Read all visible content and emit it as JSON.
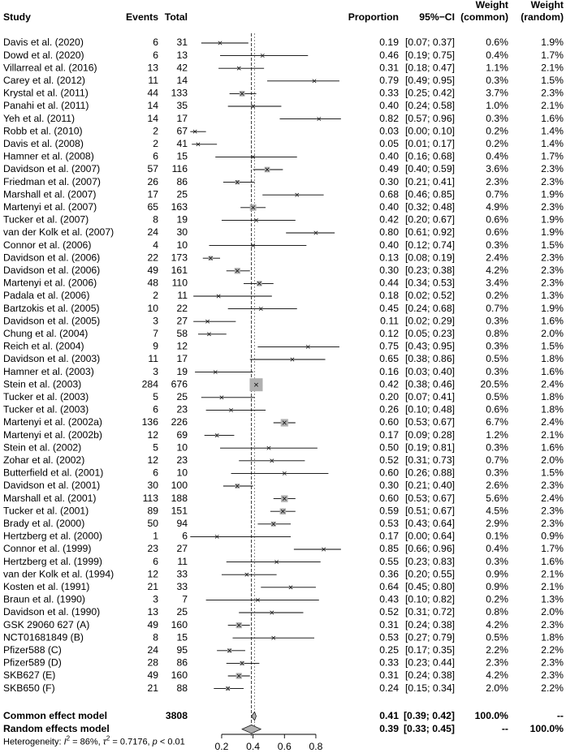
{
  "chart_data": {
    "type": "forest",
    "headers": {
      "study": "Study",
      "events": "Events",
      "total": "Total",
      "proportion": "Proportion",
      "ci": "95%−CI",
      "weight_common_top": "Weight",
      "weight_common_bottom": "(common)",
      "weight_random_top": "Weight",
      "weight_random_bottom": "(random)"
    },
    "studies": [
      {
        "study": "Davis et al. (2020)",
        "events": "6",
        "total": "31",
        "prop": 0.19,
        "ci_low": 0.07,
        "ci_high": 0.37,
        "prop_text": "0.19",
        "ci_text": "[0.07; 0.37]",
        "w_common": "0.6%",
        "w_random": "1.9%",
        "w_common_value": 0.6
      },
      {
        "study": "Dowd et al. (2020)",
        "events": "6",
        "total": "13",
        "prop": 0.46,
        "ci_low": 0.19,
        "ci_high": 0.75,
        "prop_text": "0.46",
        "ci_text": "[0.19; 0.75]",
        "w_common": "0.4%",
        "w_random": "1.7%",
        "w_common_value": 0.4
      },
      {
        "study": "Villarreal et al. (2016)",
        "events": "13",
        "total": "42",
        "prop": 0.31,
        "ci_low": 0.18,
        "ci_high": 0.47,
        "prop_text": "0.31",
        "ci_text": "[0.18; 0.47]",
        "w_common": "1.1%",
        "w_random": "2.1%",
        "w_common_value": 1.1
      },
      {
        "study": "Carey et al. (2012)",
        "events": "11",
        "total": "14",
        "prop": 0.79,
        "ci_low": 0.49,
        "ci_high": 0.95,
        "prop_text": "0.79",
        "ci_text": "[0.49; 0.95]",
        "w_common": "0.3%",
        "w_random": "1.5%",
        "w_common_value": 0.3
      },
      {
        "study": "Krystal et al. (2011)",
        "events": "44",
        "total": "133",
        "prop": 0.33,
        "ci_low": 0.25,
        "ci_high": 0.42,
        "prop_text": "0.33",
        "ci_text": "[0.25; 0.42]",
        "w_common": "3.7%",
        "w_random": "2.3%",
        "w_common_value": 3.7
      },
      {
        "study": "Panahi et al. (2011)",
        "events": "14",
        "total": "35",
        "prop": 0.4,
        "ci_low": 0.24,
        "ci_high": 0.58,
        "prop_text": "0.40",
        "ci_text": "[0.24; 0.58]",
        "w_common": "1.0%",
        "w_random": "2.1%",
        "w_common_value": 1.0
      },
      {
        "study": "Yeh et al. (2011)",
        "events": "14",
        "total": "17",
        "prop": 0.82,
        "ci_low": 0.57,
        "ci_high": 0.96,
        "prop_text": "0.82",
        "ci_text": "[0.57; 0.96]",
        "w_common": "0.3%",
        "w_random": "1.6%",
        "w_common_value": 0.3
      },
      {
        "study": "Robb et al. (2010)",
        "events": "2",
        "total": "67",
        "prop": 0.03,
        "ci_low": 0.0,
        "ci_high": 0.1,
        "prop_text": "0.03",
        "ci_text": "[0.00; 0.10]",
        "w_common": "0.2%",
        "w_random": "1.4%",
        "w_common_value": 0.2
      },
      {
        "study": "Davis et al. (2008)",
        "events": "2",
        "total": "41",
        "prop": 0.05,
        "ci_low": 0.01,
        "ci_high": 0.17,
        "prop_text": "0.05",
        "ci_text": "[0.01; 0.17]",
        "w_common": "0.2%",
        "w_random": "1.4%",
        "w_common_value": 0.2
      },
      {
        "study": "Hamner et al. (2008)",
        "events": "6",
        "total": "15",
        "prop": 0.4,
        "ci_low": 0.16,
        "ci_high": 0.68,
        "prop_text": "0.40",
        "ci_text": "[0.16; 0.68]",
        "w_common": "0.4%",
        "w_random": "1.7%",
        "w_common_value": 0.4
      },
      {
        "study": "Davidson et al. (2007)",
        "events": "57",
        "total": "116",
        "prop": 0.49,
        "ci_low": 0.4,
        "ci_high": 0.59,
        "prop_text": "0.49",
        "ci_text": "[0.40; 0.59]",
        "w_common": "3.6%",
        "w_random": "2.3%",
        "w_common_value": 3.6
      },
      {
        "study": "Friedman et al. (2007)",
        "events": "26",
        "total": "86",
        "prop": 0.3,
        "ci_low": 0.21,
        "ci_high": 0.41,
        "prop_text": "0.30",
        "ci_text": "[0.21; 0.41]",
        "w_common": "2.3%",
        "w_random": "2.3%",
        "w_common_value": 2.3
      },
      {
        "study": "Marshall et al. (2007)",
        "events": "17",
        "total": "25",
        "prop": 0.68,
        "ci_low": 0.46,
        "ci_high": 0.85,
        "prop_text": "0.68",
        "ci_text": "[0.46; 0.85]",
        "w_common": "0.7%",
        "w_random": "1.9%",
        "w_common_value": 0.7
      },
      {
        "study": "Martenyi et al. (2007)",
        "events": "65",
        "total": "163",
        "prop": 0.4,
        "ci_low": 0.32,
        "ci_high": 0.48,
        "prop_text": "0.40",
        "ci_text": "[0.32; 0.48]",
        "w_common": "4.9%",
        "w_random": "2.3%",
        "w_common_value": 4.9
      },
      {
        "study": "Tucker et al. (2007)",
        "events": "8",
        "total": "19",
        "prop": 0.42,
        "ci_low": 0.2,
        "ci_high": 0.67,
        "prop_text": "0.42",
        "ci_text": "[0.20; 0.67]",
        "w_common": "0.6%",
        "w_random": "1.9%",
        "w_common_value": 0.6
      },
      {
        "study": "van der Kolk et al. (2007)",
        "events": "24",
        "total": "30",
        "prop": 0.8,
        "ci_low": 0.61,
        "ci_high": 0.92,
        "prop_text": "0.80",
        "ci_text": "[0.61; 0.92]",
        "w_common": "0.6%",
        "w_random": "1.9%",
        "w_common_value": 0.6
      },
      {
        "study": "Connor et al. (2006)",
        "events": "4",
        "total": "10",
        "prop": 0.4,
        "ci_low": 0.12,
        "ci_high": 0.74,
        "prop_text": "0.40",
        "ci_text": "[0.12; 0.74]",
        "w_common": "0.3%",
        "w_random": "1.5%",
        "w_common_value": 0.3
      },
      {
        "study": "Davidson et al. (2006)",
        "events": "22",
        "total": "173",
        "prop": 0.13,
        "ci_low": 0.08,
        "ci_high": 0.19,
        "prop_text": "0.13",
        "ci_text": "[0.08; 0.19]",
        "w_common": "2.4%",
        "w_random": "2.3%",
        "w_common_value": 2.4
      },
      {
        "study": "Davidson et al. (2006)",
        "events": "49",
        "total": "161",
        "prop": 0.3,
        "ci_low": 0.23,
        "ci_high": 0.38,
        "prop_text": "0.30",
        "ci_text": "[0.23; 0.38]",
        "w_common": "4.2%",
        "w_random": "2.3%",
        "w_common_value": 4.2
      },
      {
        "study": "Martenyi et al. (2006)",
        "events": "48",
        "total": "110",
        "prop": 0.44,
        "ci_low": 0.34,
        "ci_high": 0.53,
        "prop_text": "0.44",
        "ci_text": "[0.34; 0.53]",
        "w_common": "3.4%",
        "w_random": "2.3%",
        "w_common_value": 3.4
      },
      {
        "study": "Padala et al. (2006)",
        "events": "2",
        "total": "11",
        "prop": 0.18,
        "ci_low": 0.02,
        "ci_high": 0.52,
        "prop_text": "0.18",
        "ci_text": "[0.02; 0.52]",
        "w_common": "0.2%",
        "w_random": "1.3%",
        "w_common_value": 0.2
      },
      {
        "study": "Bartzokis et al. (2005)",
        "events": "10",
        "total": "22",
        "prop": 0.45,
        "ci_low": 0.24,
        "ci_high": 0.68,
        "prop_text": "0.45",
        "ci_text": "[0.24; 0.68]",
        "w_common": "0.7%",
        "w_random": "1.9%",
        "w_common_value": 0.7
      },
      {
        "study": "Davidson et al. (2005)",
        "events": "3",
        "total": "27",
        "prop": 0.11,
        "ci_low": 0.02,
        "ci_high": 0.29,
        "prop_text": "0.11",
        "ci_text": "[0.02; 0.29]",
        "w_common": "0.3%",
        "w_random": "1.6%",
        "w_common_value": 0.3
      },
      {
        "study": "Chung et al. (2004)",
        "events": "7",
        "total": "58",
        "prop": 0.12,
        "ci_low": 0.05,
        "ci_high": 0.23,
        "prop_text": "0.12",
        "ci_text": "[0.05; 0.23]",
        "w_common": "0.8%",
        "w_random": "2.0%",
        "w_common_value": 0.8
      },
      {
        "study": "Reich et al. (2004)",
        "events": "9",
        "total": "12",
        "prop": 0.75,
        "ci_low": 0.43,
        "ci_high": 0.95,
        "prop_text": "0.75",
        "ci_text": "[0.43; 0.95]",
        "w_common": "0.3%",
        "w_random": "1.5%",
        "w_common_value": 0.3
      },
      {
        "study": "Davidson et al. (2003)",
        "events": "11",
        "total": "17",
        "prop": 0.65,
        "ci_low": 0.38,
        "ci_high": 0.86,
        "prop_text": "0.65",
        "ci_text": "[0.38; 0.86]",
        "w_common": "0.5%",
        "w_random": "1.8%",
        "w_common_value": 0.5
      },
      {
        "study": "Hamner et al. (2003)",
        "events": "3",
        "total": "19",
        "prop": 0.16,
        "ci_low": 0.03,
        "ci_high": 0.4,
        "prop_text": "0.16",
        "ci_text": "[0.03; 0.40]",
        "w_common": "0.3%",
        "w_random": "1.6%",
        "w_common_value": 0.3
      },
      {
        "study": "Stein et al. (2003)",
        "events": "284",
        "total": "676",
        "prop": 0.42,
        "ci_low": 0.38,
        "ci_high": 0.46,
        "prop_text": "0.42",
        "ci_text": "[0.38; 0.46]",
        "w_common": "20.5%",
        "w_random": "2.4%",
        "w_common_value": 20.5
      },
      {
        "study": "Tucker et al. (2003)",
        "events": "5",
        "total": "25",
        "prop": 0.2,
        "ci_low": 0.07,
        "ci_high": 0.41,
        "prop_text": "0.20",
        "ci_text": "[0.07; 0.41]",
        "w_common": "0.5%",
        "w_random": "1.8%",
        "w_common_value": 0.5
      },
      {
        "study": "Tucker et al. (2003)",
        "events": "6",
        "total": "23",
        "prop": 0.26,
        "ci_low": 0.1,
        "ci_high": 0.48,
        "prop_text": "0.26",
        "ci_text": "[0.10; 0.48]",
        "w_common": "0.6%",
        "w_random": "1.8%",
        "w_common_value": 0.6
      },
      {
        "study": "Martenyi et al. (2002a)",
        "events": "136",
        "total": "226",
        "prop": 0.6,
        "ci_low": 0.53,
        "ci_high": 0.67,
        "prop_text": "0.60",
        "ci_text": "[0.53; 0.67]",
        "w_common": "6.7%",
        "w_random": "2.4%",
        "w_common_value": 6.7
      },
      {
        "study": "Martenyi et al. (2002b)",
        "events": "12",
        "total": "69",
        "prop": 0.17,
        "ci_low": 0.09,
        "ci_high": 0.28,
        "prop_text": "0.17",
        "ci_text": "[0.09; 0.28]",
        "w_common": "1.2%",
        "w_random": "2.1%",
        "w_common_value": 1.2
      },
      {
        "study": "Stein et al. (2002)",
        "events": "5",
        "total": "10",
        "prop": 0.5,
        "ci_low": 0.19,
        "ci_high": 0.81,
        "prop_text": "0.50",
        "ci_text": "[0.19; 0.81]",
        "w_common": "0.3%",
        "w_random": "1.6%",
        "w_common_value": 0.3
      },
      {
        "study": "Zohar et al. (2002)",
        "events": "12",
        "total": "23",
        "prop": 0.52,
        "ci_low": 0.31,
        "ci_high": 0.73,
        "prop_text": "0.52",
        "ci_text": "[0.31; 0.73]",
        "w_common": "0.7%",
        "w_random": "2.0%",
        "w_common_value": 0.7
      },
      {
        "study": "Butterfield et al. (2001)",
        "events": "6",
        "total": "10",
        "prop": 0.6,
        "ci_low": 0.26,
        "ci_high": 0.88,
        "prop_text": "0.60",
        "ci_text": "[0.26; 0.88]",
        "w_common": "0.3%",
        "w_random": "1.5%",
        "w_common_value": 0.3
      },
      {
        "study": "Davidson et al. (2001)",
        "events": "30",
        "total": "100",
        "prop": 0.3,
        "ci_low": 0.21,
        "ci_high": 0.4,
        "prop_text": "0.30",
        "ci_text": "[0.21; 0.40]",
        "w_common": "2.6%",
        "w_random": "2.3%",
        "w_common_value": 2.6
      },
      {
        "study": "Marshall et al. (2001)",
        "events": "113",
        "total": "188",
        "prop": 0.6,
        "ci_low": 0.53,
        "ci_high": 0.67,
        "prop_text": "0.60",
        "ci_text": "[0.53; 0.67]",
        "w_common": "5.6%",
        "w_random": "2.4%",
        "w_common_value": 5.6
      },
      {
        "study": "Tucker et al. (2001)",
        "events": "89",
        "total": "151",
        "prop": 0.59,
        "ci_low": 0.51,
        "ci_high": 0.67,
        "prop_text": "0.59",
        "ci_text": "[0.51; 0.67]",
        "w_common": "4.5%",
        "w_random": "2.3%",
        "w_common_value": 4.5
      },
      {
        "study": "Brady et al. (2000)",
        "events": "50",
        "total": "94",
        "prop": 0.53,
        "ci_low": 0.43,
        "ci_high": 0.64,
        "prop_text": "0.53",
        "ci_text": "[0.43; 0.64]",
        "w_common": "2.9%",
        "w_random": "2.3%",
        "w_common_value": 2.9
      },
      {
        "study": "Hertzberg et al. (2000)",
        "events": "1",
        "total": "6",
        "prop": 0.17,
        "ci_low": 0.0,
        "ci_high": 0.64,
        "prop_text": "0.17",
        "ci_text": "[0.00; 0.64]",
        "w_common": "0.1%",
        "w_random": "0.9%",
        "w_common_value": 0.1
      },
      {
        "study": "Connor et al. (1999)",
        "events": "23",
        "total": "27",
        "prop": 0.85,
        "ci_low": 0.66,
        "ci_high": 0.96,
        "prop_text": "0.85",
        "ci_text": "[0.66; 0.96]",
        "w_common": "0.4%",
        "w_random": "1.7%",
        "w_common_value": 0.4
      },
      {
        "study": "Hertzberg et al. (1999)",
        "events": "6",
        "total": "11",
        "prop": 0.55,
        "ci_low": 0.23,
        "ci_high": 0.83,
        "prop_text": "0.55",
        "ci_text": "[0.23; 0.83]",
        "w_common": "0.3%",
        "w_random": "1.6%",
        "w_common_value": 0.3
      },
      {
        "study": "van der Kolk et al. (1994)",
        "events": "12",
        "total": "33",
        "prop": 0.36,
        "ci_low": 0.2,
        "ci_high": 0.55,
        "prop_text": "0.36",
        "ci_text": "[0.20; 0.55]",
        "w_common": "0.9%",
        "w_random": "2.1%",
        "w_common_value": 0.9
      },
      {
        "study": "Kosten et al. (1991)",
        "events": "21",
        "total": "33",
        "prop": 0.64,
        "ci_low": 0.45,
        "ci_high": 0.8,
        "prop_text": "0.64",
        "ci_text": "[0.45; 0.80]",
        "w_common": "0.9%",
        "w_random": "2.1%",
        "w_common_value": 0.9
      },
      {
        "study": "Braun et al. (1990)",
        "events": "3",
        "total": "7",
        "prop": 0.43,
        "ci_low": 0.1,
        "ci_high": 0.82,
        "prop_text": "0.43",
        "ci_text": "[0.10; 0.82]",
        "w_common": "0.2%",
        "w_random": "1.3%",
        "w_common_value": 0.2
      },
      {
        "study": "Davidson et al. (1990)",
        "events": "13",
        "total": "25",
        "prop": 0.52,
        "ci_low": 0.31,
        "ci_high": 0.72,
        "prop_text": "0.52",
        "ci_text": "[0.31; 0.72]",
        "w_common": "0.8%",
        "w_random": "2.0%",
        "w_common_value": 0.8
      },
      {
        "study": "GSK 29060 627 (A)",
        "events": "49",
        "total": "160",
        "prop": 0.31,
        "ci_low": 0.24,
        "ci_high": 0.38,
        "prop_text": "0.31",
        "ci_text": "[0.24; 0.38]",
        "w_common": "4.2%",
        "w_random": "2.3%",
        "w_common_value": 4.2
      },
      {
        "study": "NCT01681849 (B)",
        "events": "8",
        "total": "15",
        "prop": 0.53,
        "ci_low": 0.27,
        "ci_high": 0.79,
        "prop_text": "0.53",
        "ci_text": "[0.27; 0.79]",
        "w_common": "0.5%",
        "w_random": "1.8%",
        "w_common_value": 0.5
      },
      {
        "study": "Pfizer588 (C)",
        "events": "24",
        "total": "95",
        "prop": 0.25,
        "ci_low": 0.17,
        "ci_high": 0.35,
        "prop_text": "0.25",
        "ci_text": "[0.17; 0.35]",
        "w_common": "2.2%",
        "w_random": "2.2%",
        "w_common_value": 2.2
      },
      {
        "study": "Pfizer589 (D)",
        "events": "28",
        "total": "86",
        "prop": 0.33,
        "ci_low": 0.23,
        "ci_high": 0.44,
        "prop_text": "0.33",
        "ci_text": "[0.23; 0.44]",
        "w_common": "2.3%",
        "w_random": "2.3%",
        "w_common_value": 2.3
      },
      {
        "study": "SKB627 (E)",
        "events": "49",
        "total": "160",
        "prop": 0.31,
        "ci_low": 0.24,
        "ci_high": 0.38,
        "prop_text": "0.31",
        "ci_text": "[0.24; 0.38]",
        "w_common": "4.2%",
        "w_random": "2.3%",
        "w_common_value": 4.2
      },
      {
        "study": "SKB650 (F)",
        "events": "21",
        "total": "88",
        "prop": 0.24,
        "ci_low": 0.15,
        "ci_high": 0.34,
        "prop_text": "0.24",
        "ci_text": "[0.15; 0.34]",
        "w_common": "2.0%",
        "w_random": "2.2%",
        "w_common_value": 2.0
      }
    ],
    "summary": [
      {
        "label": "Common effect model",
        "total": "3808",
        "prop": 0.41,
        "ci_low": 0.39,
        "ci_high": 0.42,
        "prop_text": "0.41",
        "ci_text": "[0.39; 0.42]",
        "w_common": "100.0%",
        "w_random": "--"
      },
      {
        "label": "Random effects model",
        "total": "",
        "prop": 0.39,
        "ci_low": 0.33,
        "ci_high": 0.45,
        "prop_text": "0.39",
        "ci_text": "[0.33; 0.45]",
        "w_common": "--",
        "w_random": "100.0%"
      }
    ],
    "heterogeneity": {
      "prefix": "Heterogeneity: ",
      "i2_symbol": "I",
      "i2_sup": "2",
      "i2_value": " = 86%, ",
      "tau_symbol": "τ",
      "tau_sup": "2",
      "tau_value": " = 0.7176, ",
      "p_symbol": "p",
      "p_value": " < 0.01"
    },
    "x_axis": {
      "ticks": [
        0.2,
        0.4,
        0.6,
        0.8
      ],
      "tick_labels": [
        "0.2",
        "0.4",
        "0.6",
        "0.8"
      ],
      "min": 0.2,
      "max": 0.8
    },
    "reference_line": 0.41
  }
}
